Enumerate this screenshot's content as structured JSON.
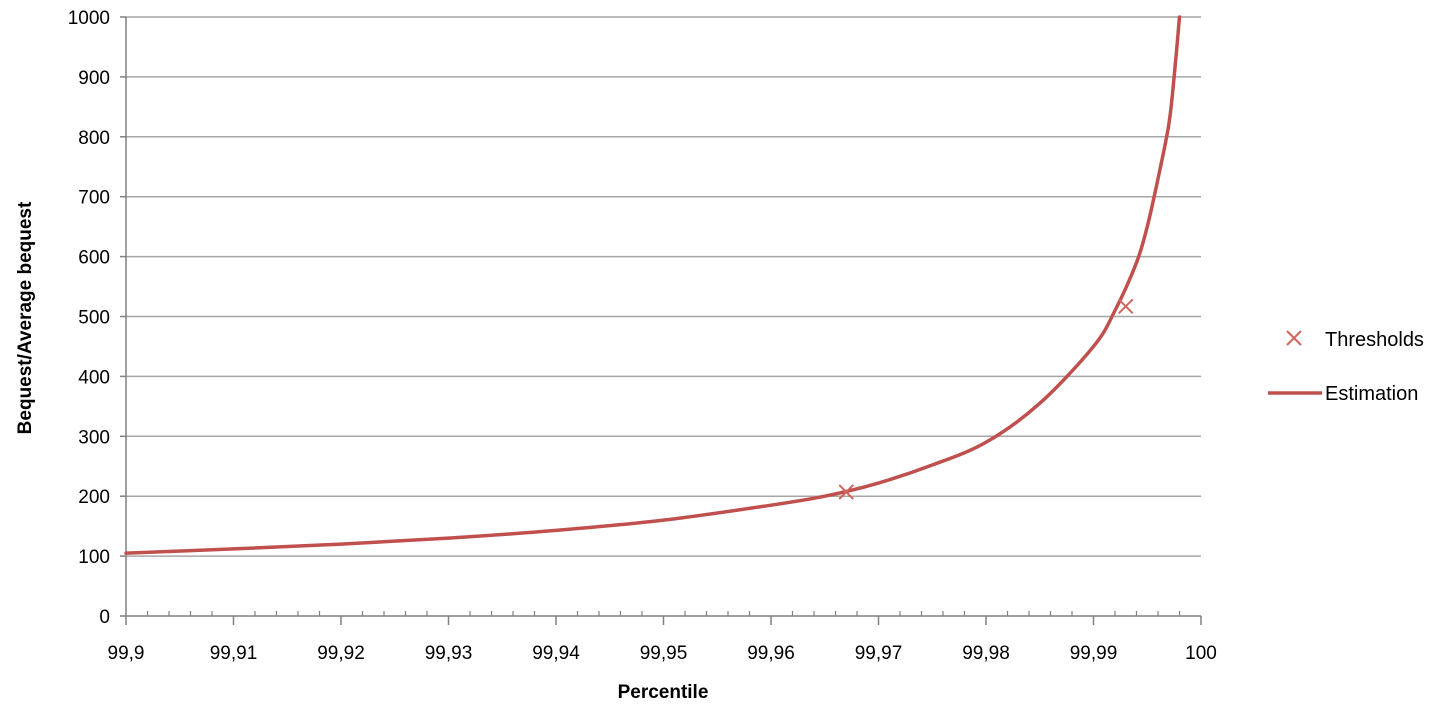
{
  "chart_data": {
    "type": "line",
    "title": "",
    "xlabel": "Percentile",
    "ylabel": "Bequest/Average bequest",
    "xlim": [
      99.9,
      100
    ],
    "ylim": [
      0,
      1000
    ],
    "x_ticks": [
      {
        "value": 99.9,
        "label": "99,9"
      },
      {
        "value": 99.91,
        "label": "99,91"
      },
      {
        "value": 99.92,
        "label": "99,92"
      },
      {
        "value": 99.93,
        "label": "99,93"
      },
      {
        "value": 99.94,
        "label": "99,94"
      },
      {
        "value": 99.95,
        "label": "99,95"
      },
      {
        "value": 99.96,
        "label": "99,96"
      },
      {
        "value": 99.97,
        "label": "99,97"
      },
      {
        "value": 99.98,
        "label": "99,98"
      },
      {
        "value": 99.99,
        "label": "99,99"
      },
      {
        "value": 100,
        "label": "100"
      }
    ],
    "y_ticks": [
      {
        "value": 0,
        "label": "0"
      },
      {
        "value": 100,
        "label": "100"
      },
      {
        "value": 200,
        "label": "200"
      },
      {
        "value": 300,
        "label": "300"
      },
      {
        "value": 400,
        "label": "400"
      },
      {
        "value": 500,
        "label": "500"
      },
      {
        "value": 600,
        "label": "600"
      },
      {
        "value": 700,
        "label": "700"
      },
      {
        "value": 800,
        "label": "800"
      },
      {
        "value": 900,
        "label": "900"
      },
      {
        "value": 1000,
        "label": "1000"
      }
    ],
    "grid": "horizontal",
    "legend_position": "right",
    "series": [
      {
        "name": "Thresholds",
        "type": "scatter",
        "marker": "x",
        "color": "#d0675f",
        "x": [
          99.967,
          99.993
        ],
        "y": [
          207,
          517
        ]
      },
      {
        "name": "Estimation",
        "type": "line",
        "color": "#c0504d",
        "x": [
          99.9,
          99.91,
          99.92,
          99.93,
          99.94,
          99.95,
          99.96,
          99.965,
          99.97,
          99.975,
          99.98,
          99.985,
          99.99,
          99.992,
          99.994,
          99.995,
          99.996,
          99.997,
          99.9975,
          99.998
        ],
        "y": [
          105,
          112,
          120,
          130,
          143,
          160,
          185,
          200,
          222,
          252,
          290,
          355,
          450,
          510,
          590,
          650,
          730,
          820,
          900,
          1000
        ]
      }
    ]
  }
}
